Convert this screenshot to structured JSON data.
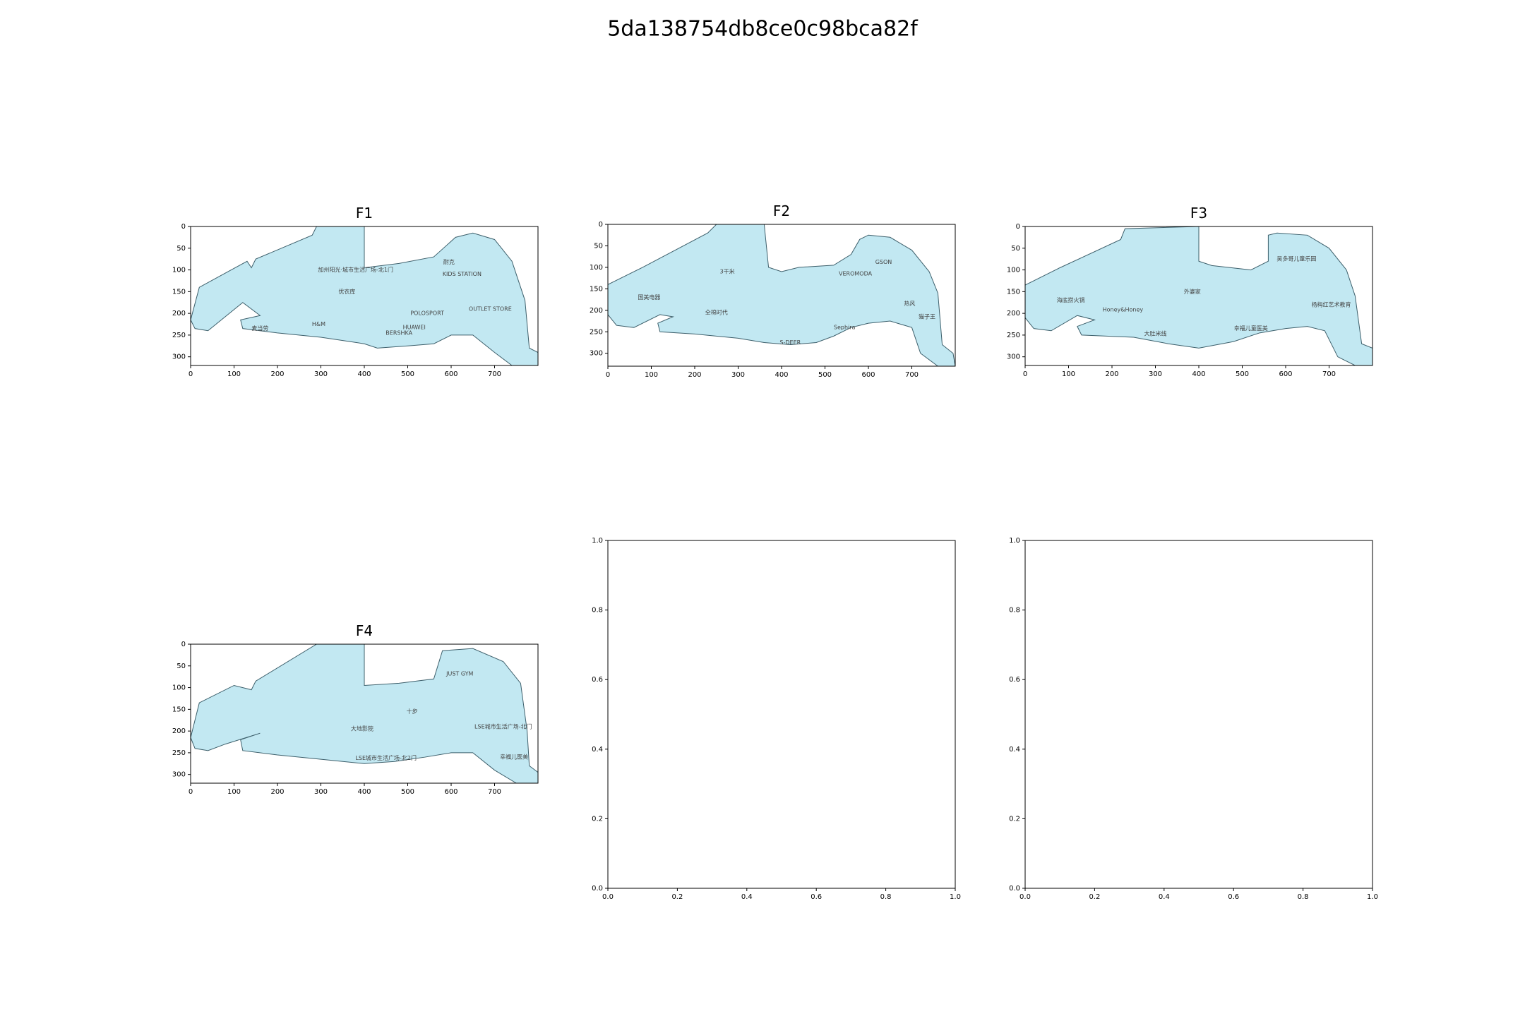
{
  "title": "5da138754db8ce0c98bca82f",
  "chart_data": [
    {
      "type": "map",
      "title": "F1",
      "xlim": [
        0,
        800
      ],
      "ylim": [
        320,
        0
      ],
      "xticks": [
        0,
        100,
        200,
        300,
        400,
        500,
        600,
        700
      ],
      "yticks": [
        0,
        50,
        100,
        150,
        200,
        250,
        300
      ],
      "color": "#c2e8f2",
      "outline": [
        [
          0,
          215
        ],
        [
          20,
          140
        ],
        [
          130,
          80
        ],
        [
          140,
          95
        ],
        [
          150,
          75
        ],
        [
          280,
          20
        ],
        [
          290,
          0
        ],
        [
          400,
          0
        ],
        [
          400,
          95
        ],
        [
          480,
          85
        ],
        [
          560,
          70
        ],
        [
          610,
          25
        ],
        [
          650,
          15
        ],
        [
          700,
          30
        ],
        [
          740,
          80
        ],
        [
          770,
          170
        ],
        [
          780,
          280
        ],
        [
          800,
          290
        ],
        [
          800,
          320
        ],
        [
          740,
          320
        ],
        [
          700,
          290
        ],
        [
          650,
          250
        ],
        [
          600,
          250
        ],
        [
          560,
          270
        ],
        [
          500,
          275
        ],
        [
          430,
          280
        ],
        [
          400,
          270
        ],
        [
          300,
          255
        ],
        [
          200,
          245
        ],
        [
          120,
          235
        ],
        [
          115,
          215
        ],
        [
          160,
          205
        ],
        [
          120,
          175
        ],
        [
          40,
          240
        ],
        [
          10,
          235
        ]
      ],
      "labels": [
        {
          "text": "加州阳光·城市生活广场-北1门",
          "x": 380,
          "y": 100
        },
        {
          "text": "优衣库",
          "x": 360,
          "y": 150
        },
        {
          "text": "H&M",
          "x": 295,
          "y": 225
        },
        {
          "text": "麦当劳",
          "x": 160,
          "y": 235
        },
        {
          "text": "KIDS STATION",
          "x": 625,
          "y": 110
        },
        {
          "text": "耐克",
          "x": 595,
          "y": 82
        },
        {
          "text": "BERSHKA",
          "x": 480,
          "y": 245
        },
        {
          "text": "HUAWEI",
          "x": 515,
          "y": 232
        },
        {
          "text": "POLOSPORT",
          "x": 545,
          "y": 200
        },
        {
          "text": "OUTLET STORE",
          "x": 690,
          "y": 190
        }
      ]
    },
    {
      "type": "map",
      "title": "F2",
      "xlim": [
        0,
        800
      ],
      "ylim": [
        330,
        0
      ],
      "xticks": [
        0,
        100,
        200,
        300,
        400,
        500,
        600,
        700
      ],
      "yticks": [
        0,
        50,
        100,
        150,
        200,
        250,
        300
      ],
      "color": "#c2e8f2",
      "outline": [
        [
          0,
          210
        ],
        [
          0,
          140
        ],
        [
          80,
          100
        ],
        [
          230,
          20
        ],
        [
          250,
          0
        ],
        [
          360,
          0
        ],
        [
          370,
          100
        ],
        [
          400,
          110
        ],
        [
          440,
          100
        ],
        [
          520,
          95
        ],
        [
          560,
          70
        ],
        [
          580,
          35
        ],
        [
          600,
          25
        ],
        [
          650,
          30
        ],
        [
          700,
          60
        ],
        [
          740,
          110
        ],
        [
          760,
          160
        ],
        [
          770,
          280
        ],
        [
          795,
          300
        ],
        [
          800,
          330
        ],
        [
          760,
          330
        ],
        [
          720,
          300
        ],
        [
          700,
          240
        ],
        [
          650,
          225
        ],
        [
          600,
          230
        ],
        [
          560,
          240
        ],
        [
          520,
          260
        ],
        [
          480,
          275
        ],
        [
          420,
          280
        ],
        [
          360,
          275
        ],
        [
          300,
          265
        ],
        [
          200,
          255
        ],
        [
          120,
          250
        ],
        [
          115,
          230
        ],
        [
          150,
          215
        ],
        [
          120,
          210
        ],
        [
          60,
          240
        ],
        [
          20,
          235
        ]
      ],
      "labels": [
        {
          "text": "国美电器",
          "x": 95,
          "y": 170
        },
        {
          "text": "3干米",
          "x": 275,
          "y": 110
        },
        {
          "text": "GSON",
          "x": 635,
          "y": 88
        },
        {
          "text": "VEROMODA",
          "x": 570,
          "y": 115
        },
        {
          "text": "全棉时代",
          "x": 250,
          "y": 205
        },
        {
          "text": "S-DEER",
          "x": 420,
          "y": 275
        },
        {
          "text": "Sephira",
          "x": 545,
          "y": 240
        },
        {
          "text": "热风",
          "x": 695,
          "y": 185
        },
        {
          "text": "猫子王",
          "x": 735,
          "y": 215
        }
      ]
    },
    {
      "type": "map",
      "title": "F3",
      "xlim": [
        0,
        800
      ],
      "ylim": [
        320,
        0
      ],
      "xticks": [
        0,
        100,
        200,
        300,
        400,
        500,
        600,
        700
      ],
      "yticks": [
        0,
        50,
        100,
        150,
        200,
        250,
        300
      ],
      "color": "#c2e8f2",
      "outline": [
        [
          0,
          210
        ],
        [
          0,
          135
        ],
        [
          80,
          95
        ],
        [
          220,
          30
        ],
        [
          230,
          5
        ],
        [
          400,
          0
        ],
        [
          400,
          80
        ],
        [
          430,
          90
        ],
        [
          520,
          100
        ],
        [
          560,
          80
        ],
        [
          560,
          20
        ],
        [
          580,
          15
        ],
        [
          650,
          20
        ],
        [
          700,
          50
        ],
        [
          740,
          100
        ],
        [
          760,
          160
        ],
        [
          775,
          270
        ],
        [
          800,
          280
        ],
        [
          800,
          320
        ],
        [
          760,
          320
        ],
        [
          720,
          300
        ],
        [
          690,
          240
        ],
        [
          650,
          230
        ],
        [
          600,
          235
        ],
        [
          540,
          245
        ],
        [
          480,
          265
        ],
        [
          400,
          280
        ],
        [
          330,
          270
        ],
        [
          250,
          255
        ],
        [
          130,
          250
        ],
        [
          120,
          230
        ],
        [
          160,
          215
        ],
        [
          120,
          205
        ],
        [
          60,
          240
        ],
        [
          20,
          235
        ]
      ],
      "labels": [
        {
          "text": "海底捞火锅",
          "x": 105,
          "y": 170
        },
        {
          "text": "大肚米线",
          "x": 300,
          "y": 247
        },
        {
          "text": "外婆家",
          "x": 385,
          "y": 150
        },
        {
          "text": "吴多哥儿童乐园",
          "x": 625,
          "y": 75
        },
        {
          "text": "杨梅红艺术教育",
          "x": 705,
          "y": 180
        },
        {
          "text": "Honey&Honey",
          "x": 225,
          "y": 192
        },
        {
          "text": "幸福儿童医美",
          "x": 520,
          "y": 235
        }
      ]
    },
    {
      "type": "map",
      "title": "F4",
      "xlim": [
        0,
        800
      ],
      "ylim": [
        320,
        0
      ],
      "xticks": [
        0,
        100,
        200,
        300,
        400,
        500,
        600,
        700
      ],
      "yticks": [
        0,
        50,
        100,
        150,
        200,
        250,
        300
      ],
      "color": "#c2e8f2",
      "outline": [
        [
          0,
          215
        ],
        [
          20,
          135
        ],
        [
          100,
          95
        ],
        [
          140,
          105
        ],
        [
          150,
          85
        ],
        [
          290,
          0
        ],
        [
          400,
          0
        ],
        [
          400,
          95
        ],
        [
          480,
          90
        ],
        [
          560,
          80
        ],
        [
          580,
          15
        ],
        [
          650,
          10
        ],
        [
          720,
          40
        ],
        [
          760,
          90
        ],
        [
          775,
          200
        ],
        [
          780,
          280
        ],
        [
          800,
          295
        ],
        [
          800,
          320
        ],
        [
          750,
          320
        ],
        [
          700,
          290
        ],
        [
          650,
          250
        ],
        [
          600,
          250
        ],
        [
          540,
          260
        ],
        [
          470,
          270
        ],
        [
          400,
          275
        ],
        [
          300,
          265
        ],
        [
          200,
          255
        ],
        [
          120,
          245
        ],
        [
          115,
          220
        ],
        [
          160,
          205
        ],
        [
          80,
          230
        ],
        [
          40,
          245
        ],
        [
          10,
          240
        ]
      ],
      "labels": [
        {
          "text": "JUST GYM",
          "x": 620,
          "y": 68
        },
        {
          "text": "大地影院",
          "x": 395,
          "y": 195
        },
        {
          "text": "LSE城市生活广场-北门",
          "x": 720,
          "y": 190
        },
        {
          "text": "幸福儿医美",
          "x": 745,
          "y": 260
        },
        {
          "text": "十步",
          "x": 510,
          "y": 155
        },
        {
          "text": "LSE城市生活广场-北2门",
          "x": 450,
          "y": 262
        }
      ]
    },
    {
      "type": "map",
      "xlim": [
        0,
        1
      ],
      "ylim": [
        0,
        1
      ],
      "xticks": [
        {
          "value": 0,
          "label": "0.0"
        },
        0.2,
        0.4,
        0.6,
        0.8,
        {
          "value": 1,
          "label": "1.0"
        }
      ],
      "yticks": [
        {
          "value": 0,
          "label": "0.0"
        },
        0.2,
        0.4,
        0.6,
        0.8,
        {
          "value": 1,
          "label": "1.0"
        }
      ]
    },
    {
      "type": "map",
      "xlim": [
        0,
        1
      ],
      "ylim": [
        0,
        1
      ],
      "xticks": [
        {
          "value": 0,
          "label": "0.0"
        },
        0.2,
        0.4,
        0.6,
        0.8,
        {
          "value": 1,
          "label": "1.0"
        }
      ],
      "yticks": [
        {
          "value": 0,
          "label": "0.0"
        },
        0.2,
        0.4,
        0.6,
        0.8,
        {
          "value": 1,
          "label": "1.0"
        }
      ]
    }
  ]
}
